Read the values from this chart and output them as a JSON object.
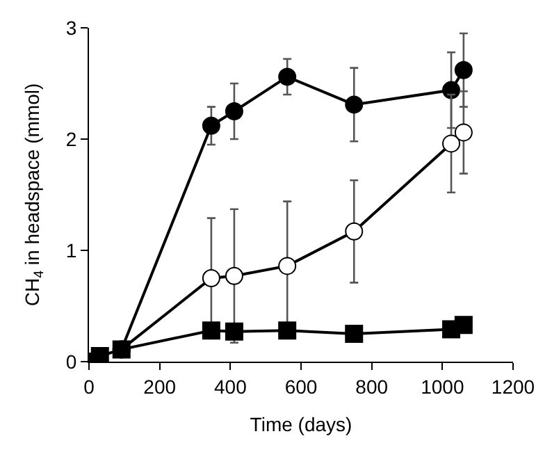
{
  "chart_data": {
    "type": "line",
    "xlabel": "Time (days)",
    "ylabel": "CH$_{4}$ in headspace (mmol)",
    "xlim": [
      0,
      1200
    ],
    "xticks": [
      0,
      200,
      400,
      600,
      800,
      1000,
      1200
    ],
    "ylim": [
      0,
      3
    ],
    "yticks": [
      0,
      1,
      2,
      3
    ],
    "series": [
      {
        "color": "#000000",
        "marker": "circle",
        "x": [
          92,
          346,
          411,
          561,
          750,
          1025,
          1060
        ],
        "values": [
          0.11,
          2.12,
          2.25,
          2.56,
          2.31,
          2.44,
          2.62
        ],
        "errors": [
          null,
          0.17,
          0.25,
          0.16,
          0.33,
          0.34,
          0.33
        ]
      },
      {
        "color": "#ffffff",
        "marker": "circle",
        "x": [
          92,
          346,
          411,
          561,
          750,
          1025,
          1060
        ],
        "values": [
          0.11,
          0.75,
          0.77,
          0.86,
          1.17,
          1.96,
          2.06
        ],
        "errors": [
          null,
          0.54,
          0.6,
          0.58,
          0.46,
          0.44,
          0.37
        ]
      },
      {
        "color": "#000000",
        "marker": "square",
        "x": [
          0,
          31,
          92,
          346,
          411,
          561,
          750,
          1025,
          1060
        ],
        "values": [
          0,
          0.05,
          0.11,
          0.28,
          0.27,
          0.28,
          0.25,
          0.29,
          0.33
        ]
      }
    ]
  }
}
